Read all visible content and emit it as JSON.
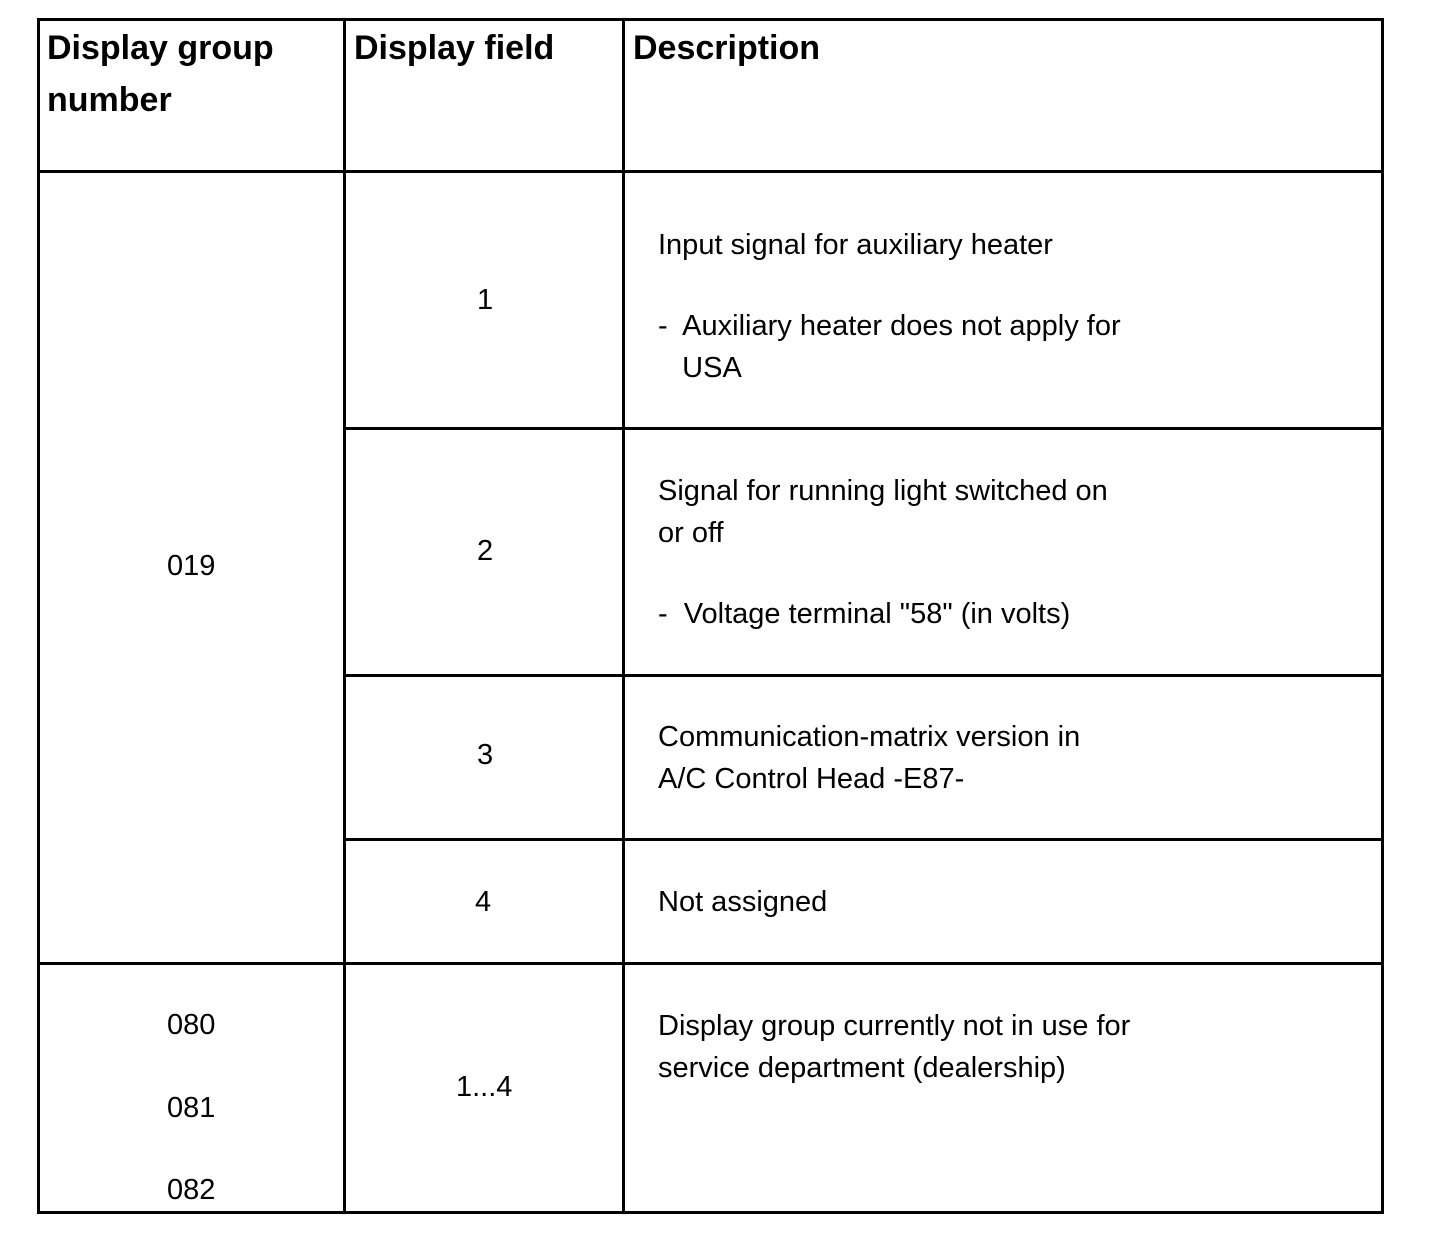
{
  "headers": [
    "Display group number",
    "Display field",
    "Description"
  ],
  "rows": [
    {
      "group": "019",
      "fields": [
        {
          "field": "1",
          "desc": "Input signal for auxiliary heater",
          "note": "-  Auxiliary heater does not apply for\n   USA"
        },
        {
          "field": "2",
          "desc": "Signal for running light switched on\nor off",
          "note": "-  Voltage terminal \"58\" (in volts)"
        },
        {
          "field": "3",
          "desc": "Communication-matrix version in\nA/C Control Head -E87-"
        },
        {
          "field": "4",
          "desc": "Not assigned"
        }
      ]
    },
    {
      "groups": [
        "080",
        "081",
        "082"
      ],
      "field": "1...4",
      "desc": "Display group currently not in use for\nservice department (dealership)"
    }
  ]
}
